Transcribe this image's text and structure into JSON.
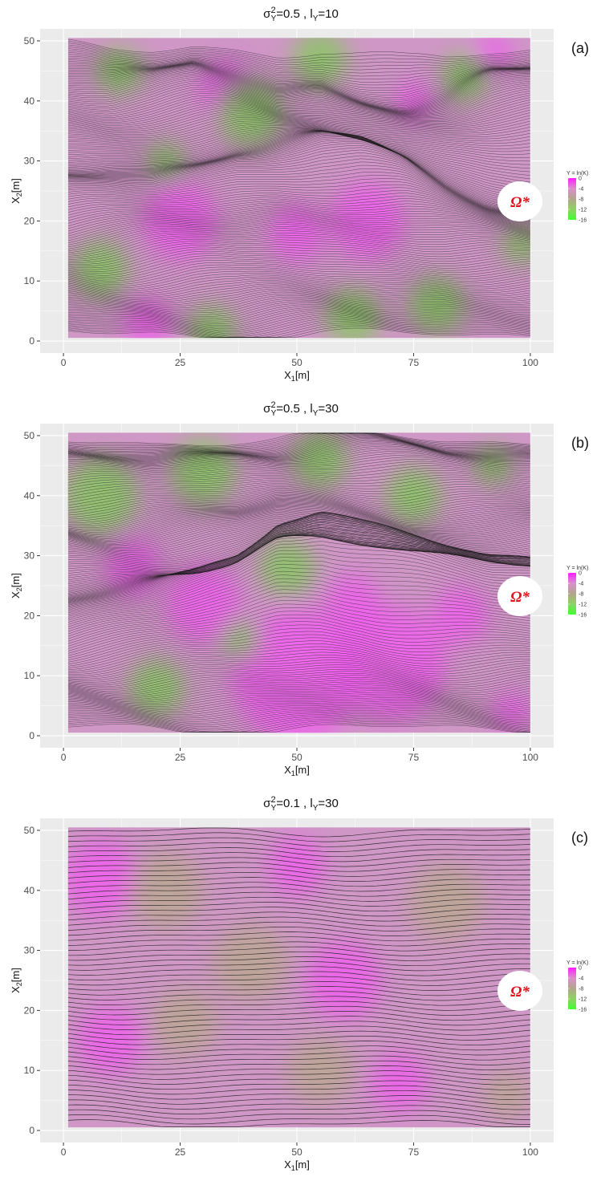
{
  "chart_data": [
    {
      "type": "heatmap",
      "panel_label": "(a)",
      "title_parts": {
        "sigma": "σ",
        "sup": "2",
        "sub": "Y",
        "eq": "=0.5 , l",
        "sub2": "Y",
        "val": "=10"
      },
      "xlabel": {
        "main": "X",
        "sub": "1",
        "unit": "[m]"
      },
      "ylabel": {
        "main": "X",
        "sub": "2",
        "unit": "[m]"
      },
      "xticks": [
        "0",
        "25",
        "50",
        "75",
        "100"
      ],
      "yticks": [
        "0",
        "10",
        "20",
        "30",
        "40",
        "50"
      ],
      "xlim": [
        -5,
        105
      ],
      "ylim": [
        -2,
        52
      ],
      "field_extent": {
        "x": [
          1,
          100
        ],
        "y": [
          0.5,
          50.5
        ]
      },
      "legend": {
        "title": "Y = ln(K)",
        "labels": [
          "0",
          "-4",
          "-8",
          "-12",
          "-16"
        ],
        "colors": [
          "#ff1aff",
          "#d98fcc",
          "#b3a58c",
          "#8fd166",
          "#3dff2e"
        ]
      },
      "annotation": "Ω*",
      "streamline_count": 180,
      "bundles": [
        {
          "y": [
            45,
            43,
            44,
            47,
            45,
            42,
            43,
            40,
            38,
            39,
            44,
            46
          ],
          "strength": 1.0
        },
        {
          "y": [
            27,
            28,
            28,
            30,
            33,
            34,
            35,
            34,
            31,
            26,
            22,
            20
          ],
          "strength": 1.0
        },
        {
          "y": [
            37,
            36,
            37,
            38,
            39,
            37,
            38,
            37,
            36,
            36,
            37,
            38
          ],
          "strength": 0.6
        },
        {
          "y": [
            17,
            18,
            20,
            21,
            23,
            26,
            25,
            25,
            24,
            20,
            18,
            17
          ],
          "strength": 0.6
        },
        {
          "y": [
            9,
            8,
            9,
            10,
            8,
            9,
            8,
            7,
            9,
            10,
            9,
            8
          ],
          "strength": 0.5
        },
        {
          "y": [
            4,
            3,
            4,
            3,
            2,
            3,
            4,
            3,
            2,
            3,
            4,
            4
          ],
          "strength": 0.5
        }
      ],
      "green_patches": [
        [
          8,
          12,
          6
        ],
        [
          12,
          45,
          5
        ],
        [
          40,
          38,
          7
        ],
        [
          55,
          47,
          6
        ],
        [
          62,
          4,
          6
        ],
        [
          80,
          6,
          6
        ],
        [
          22,
          30,
          4
        ],
        [
          32,
          2,
          5
        ],
        [
          98,
          16,
          4
        ],
        [
          86,
          44,
          5
        ]
      ],
      "magenta_patches": [
        [
          35,
          42,
          6
        ],
        [
          25,
          20,
          8
        ],
        [
          65,
          20,
          8
        ],
        [
          50,
          18,
          6
        ],
        [
          18,
          3,
          5
        ],
        [
          92,
          48,
          4
        ],
        [
          75,
          40,
          4
        ]
      ]
    },
    {
      "type": "heatmap",
      "panel_label": "(b)",
      "title_parts": {
        "sigma": "σ",
        "sup": "2",
        "sub": "Y",
        "eq": "=0.5 , l",
        "sub2": "Y",
        "val": "=30"
      },
      "xlabel": {
        "main": "X",
        "sub": "1",
        "unit": "[m]"
      },
      "ylabel": {
        "main": "X",
        "sub": "2",
        "unit": "[m]"
      },
      "xticks": [
        "0",
        "25",
        "50",
        "75",
        "100"
      ],
      "yticks": [
        "0",
        "10",
        "20",
        "30",
        "40",
        "50"
      ],
      "xlim": [
        -5,
        105
      ],
      "ylim": [
        -2,
        52
      ],
      "field_extent": {
        "x": [
          1,
          100
        ],
        "y": [
          0.5,
          50.5
        ]
      },
      "legend": {
        "title": "Y = ln(K)",
        "labels": [
          "0",
          "-4",
          "-8",
          "-12",
          "-16"
        ],
        "colors": [
          "#ff1aff",
          "#d98fcc",
          "#b3a58c",
          "#8fd166",
          "#3dff2e"
        ]
      },
      "annotation": "Ω*",
      "streamline_count": 190,
      "bundles": [
        {
          "y": [
            46,
            46,
            46,
            47,
            48,
            48,
            49,
            49,
            48,
            47,
            47,
            47
          ],
          "strength": 1.0
        },
        {
          "y": [
            22,
            24,
            26,
            29,
            33,
            40,
            41,
            38,
            36,
            34,
            32,
            32
          ],
          "strength": 1.0
        },
        {
          "y": [
            35,
            34,
            35,
            36,
            37,
            41,
            40,
            38,
            36,
            36,
            35,
            35
          ],
          "strength": 0.8
        },
        {
          "y": [
            16,
            18,
            20,
            23,
            26,
            32,
            34,
            32,
            28,
            24,
            22,
            21
          ],
          "strength": 0.5
        },
        {
          "y": [
            9,
            10,
            12,
            13,
            12,
            10,
            11,
            13,
            12,
            11,
            10,
            10
          ],
          "strength": 0.4
        },
        {
          "y": [
            4,
            4,
            5,
            4,
            3,
            4,
            5,
            4,
            5,
            5,
            4,
            4
          ],
          "strength": 0.4
        }
      ],
      "green_patches": [
        [
          8,
          40,
          8
        ],
        [
          30,
          44,
          7
        ],
        [
          55,
          46,
          6
        ],
        [
          48,
          28,
          6
        ],
        [
          20,
          8,
          6
        ],
        [
          75,
          40,
          6
        ],
        [
          92,
          45,
          4
        ],
        [
          38,
          16,
          4
        ]
      ],
      "magenta_patches": [
        [
          50,
          10,
          14
        ],
        [
          70,
          12,
          12
        ],
        [
          30,
          22,
          8
        ],
        [
          85,
          20,
          6
        ],
        [
          15,
          28,
          6
        ],
        [
          62,
          22,
          6
        ],
        [
          96,
          4,
          4
        ]
      ]
    },
    {
      "type": "heatmap",
      "panel_label": "(c)",
      "title_parts": {
        "sigma": "σ",
        "sup": "2",
        "sub": "Y",
        "eq": "=0.1 , l",
        "sub2": "Y",
        "val": "=30"
      },
      "xlabel": {
        "main": "X",
        "sub": "1",
        "unit": "[m]"
      },
      "ylabel": {
        "main": "X",
        "sub": "2",
        "unit": "[m]"
      },
      "xticks": [
        "0",
        "25",
        "50",
        "75",
        "100"
      ],
      "yticks": [
        "0",
        "10",
        "20",
        "30",
        "40",
        "50"
      ],
      "xlim": [
        -5,
        105
      ],
      "ylim": [
        -2,
        52
      ],
      "field_extent": {
        "x": [
          1,
          100
        ],
        "y": [
          0.5,
          50.5
        ]
      },
      "legend": {
        "title": "Y = ln(K)",
        "labels": [
          "0",
          "-4",
          "-8",
          "-12",
          "-16"
        ],
        "colors": [
          "#ff1aff",
          "#d98fcc",
          "#b3a58c",
          "#8fd166",
          "#3dff2e"
        ]
      },
      "annotation": "Ω*",
      "streamline_count": 60,
      "bundles": [],
      "green_patches": [
        [
          22,
          40,
          8
        ],
        [
          40,
          28,
          8
        ],
        [
          26,
          18,
          7
        ],
        [
          82,
          38,
          8
        ],
        [
          55,
          10,
          7
        ],
        [
          95,
          6,
          5
        ]
      ],
      "magenta_patches": [
        [
          8,
          42,
          8
        ],
        [
          10,
          15,
          7
        ],
        [
          60,
          25,
          8
        ],
        [
          72,
          8,
          6
        ],
        [
          50,
          44,
          6
        ]
      ]
    }
  ]
}
